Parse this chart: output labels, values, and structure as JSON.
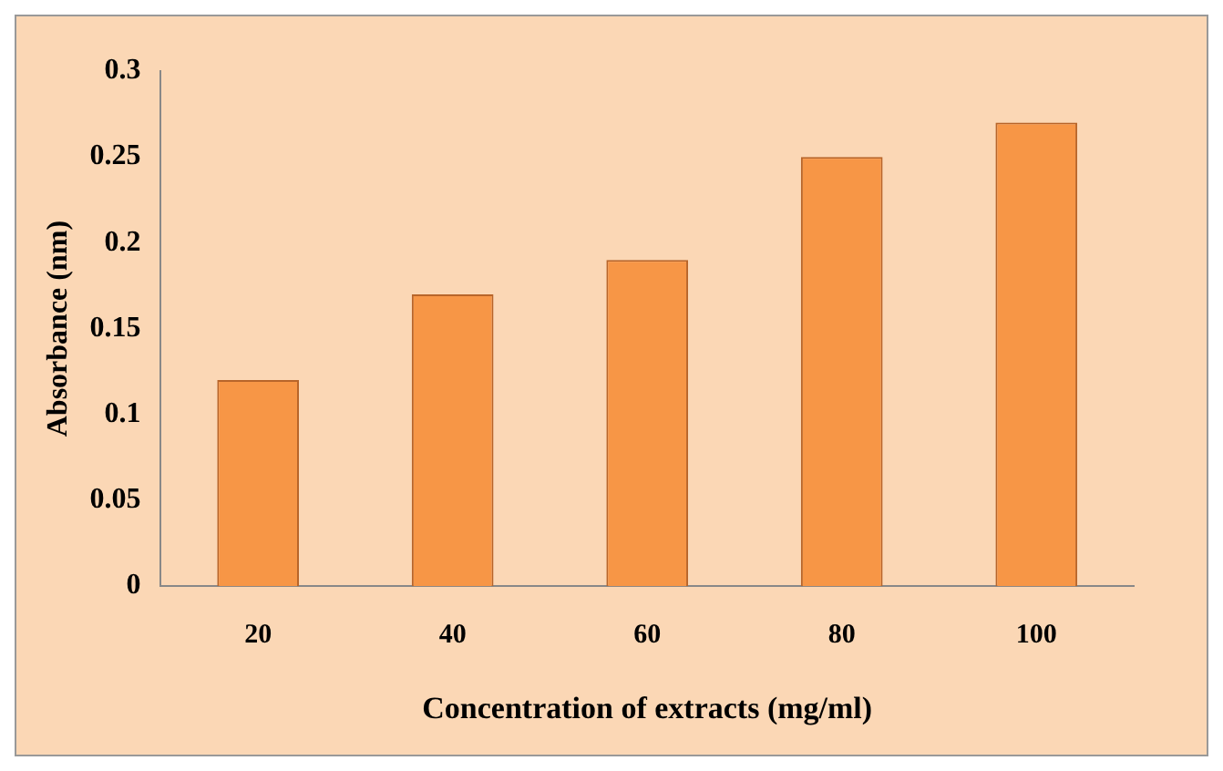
{
  "chart_data": {
    "type": "bar",
    "xlabel": "Concentration of extracts (mg/ml)",
    "ylabel": "Absorbance (nm)",
    "categories": [
      "20",
      "40",
      "60",
      "80",
      "100"
    ],
    "values": [
      0.12,
      0.17,
      0.19,
      0.25,
      0.27
    ],
    "color": "#f79646",
    "ylim": [
      0,
      0.3
    ],
    "yticks": [
      0,
      0.05,
      0.1,
      0.15,
      0.2,
      0.25,
      0.3
    ],
    "grid": false,
    "legend": false
  }
}
